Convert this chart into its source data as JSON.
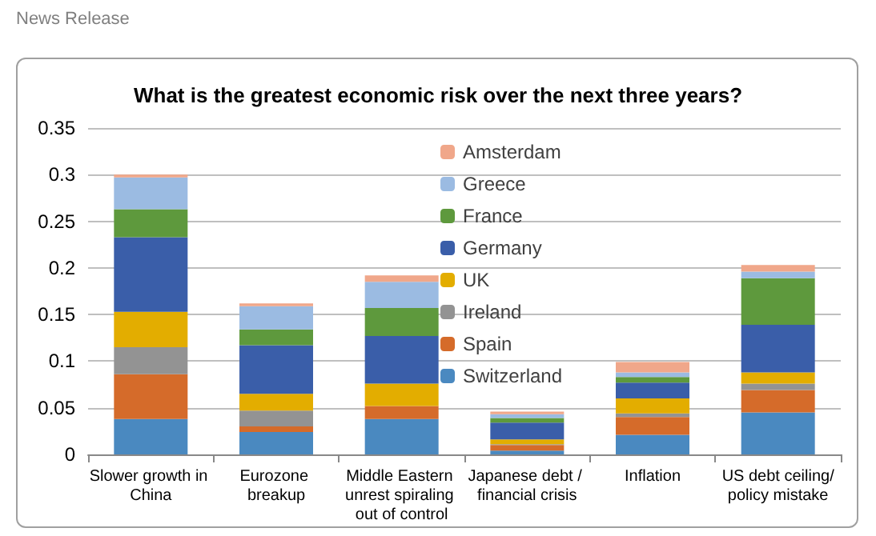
{
  "chart_data": {
    "type": "bar",
    "stacked": true,
    "title": "What is the greatest economic risk over the next three years?",
    "annotations": [
      "News Release"
    ],
    "categories": [
      "Slower growth in China",
      "Eurozone breakup",
      "Middle Eastern unrest spiraling out of control",
      "Japanese debt / financial crisis",
      "Inflation",
      "US debt ceiling/policy mistake"
    ],
    "series": [
      {
        "name": "Switzerland",
        "color": "#4a89c0",
        "values": [
          0.038,
          0.024,
          0.038,
          0.004,
          0.021,
          0.045
        ]
      },
      {
        "name": "Spain",
        "color": "#d56b2a",
        "values": [
          0.048,
          0.006,
          0.014,
          0.006,
          0.019,
          0.024
        ]
      },
      {
        "name": "Ireland",
        "color": "#939393",
        "values": [
          0.029,
          0.017,
          0,
          0.001,
          0.004,
          0.007
        ]
      },
      {
        "name": "UK",
        "color": "#e3ad00",
        "values": [
          0.038,
          0.018,
          0.024,
          0.005,
          0.016,
          0.012
        ]
      },
      {
        "name": "Germany",
        "color": "#3a5ea9",
        "values": [
          0.08,
          0.052,
          0.051,
          0.018,
          0.017,
          0.051
        ]
      },
      {
        "name": "France",
        "color": "#5e993d",
        "values": [
          0.03,
          0.017,
          0.03,
          0.005,
          0.006,
          0.05
        ]
      },
      {
        "name": "Greece",
        "color": "#9bbbe2",
        "values": [
          0.034,
          0.025,
          0.028,
          0.004,
          0.005,
          0.007
        ]
      },
      {
        "name": "Amsterdam",
        "color": "#f0a78a",
        "values": [
          0.003,
          0.003,
          0.007,
          0.003,
          0.011,
          0.007
        ]
      }
    ],
    "ylim": [
      0,
      0.35
    ],
    "yticks": [
      0,
      0.05,
      0.1,
      0.15,
      0.2,
      0.25,
      0.3,
      0.35
    ],
    "grid": "y",
    "legend": "top"
  }
}
